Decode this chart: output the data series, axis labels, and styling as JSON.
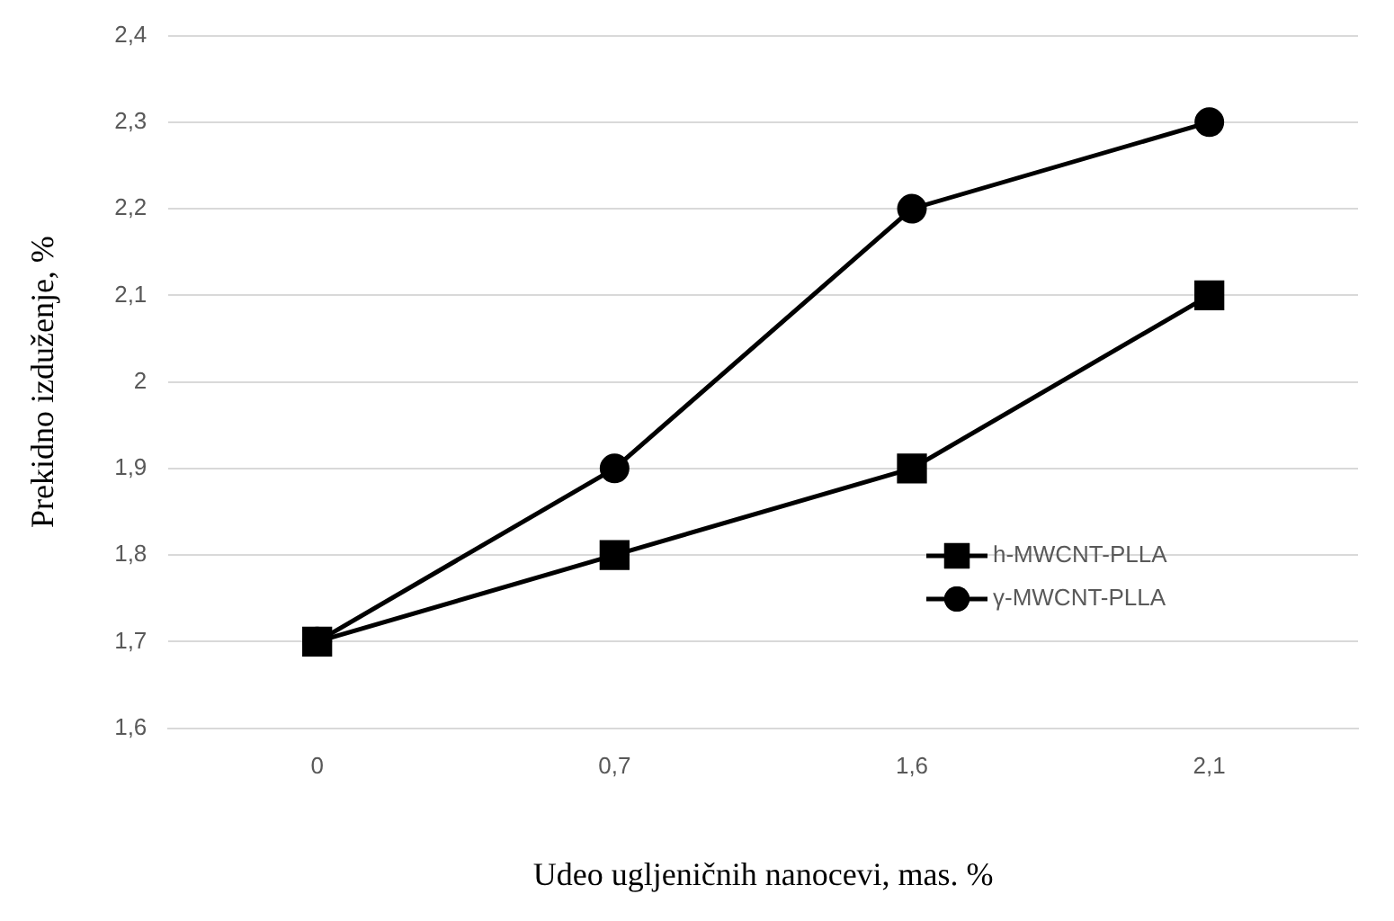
{
  "chart_data": {
    "type": "line",
    "xlabel": "Udeo ugljeničnih nanocevi, mas. %",
    "ylabel": "Prekidno izduženje, %",
    "categories": [
      "0",
      "0,7",
      "1,6",
      "2,1"
    ],
    "series": [
      {
        "name": "h-MWCNT-PLLA",
        "color": "#000000",
        "marker": "square",
        "values": [
          1.7,
          1.8,
          1.9,
          2.1
        ]
      },
      {
        "name": "γ-MWCNT-PLLA",
        "color": "#000000",
        "marker": "circle",
        "values": [
          1.7,
          1.9,
          2.2,
          2.3
        ]
      }
    ],
    "ylim": [
      1.6,
      2.4
    ],
    "yticks": [
      {
        "value": 1.6,
        "label": "1,6"
      },
      {
        "value": 1.7,
        "label": "1,7"
      },
      {
        "value": 1.8,
        "label": "1,8"
      },
      {
        "value": 1.9,
        "label": "1,9"
      },
      2,
      {
        "value": 2.1,
        "label": "2,1"
      },
      {
        "value": 2.2,
        "label": "2,2"
      },
      {
        "value": 2.3,
        "label": "2,3"
      },
      {
        "value": 2.4,
        "label": "2,4"
      }
    ],
    "grid": "y",
    "legend": "bottom right",
    "line_style": "solid"
  }
}
